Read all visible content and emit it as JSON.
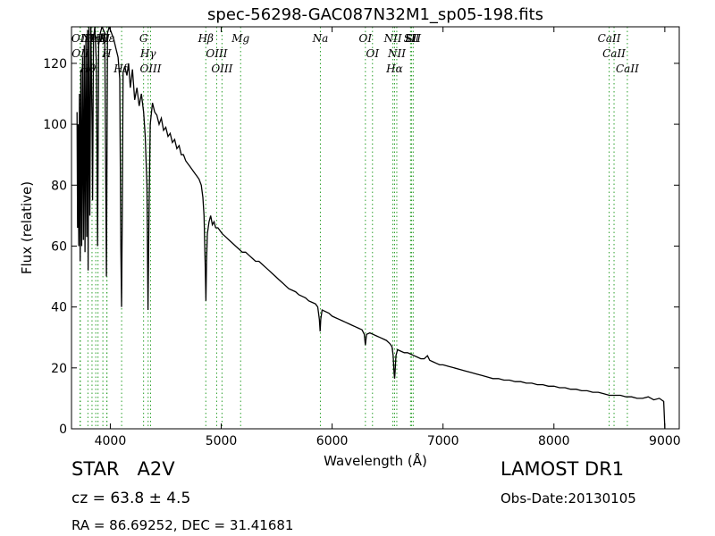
{
  "chart_data": {
    "type": "line",
    "title": "spec-56298-GAC087N32M1_sp05-198.fits",
    "xlabel": "Wavelength (Å)",
    "ylabel": "Flux (relative)",
    "xlim": [
      3650,
      9130
    ],
    "ylim": [
      0,
      132
    ],
    "xticks": [
      4000,
      5000,
      6000,
      7000,
      8000,
      9000
    ],
    "yticks": [
      0,
      20,
      40,
      60,
      80,
      100,
      120
    ],
    "grid": false,
    "series": [
      {
        "color": "#000000",
        "points": [
          [
            3700,
            104
          ],
          [
            3705,
            66
          ],
          [
            3710,
            100
          ],
          [
            3715,
            60
          ],
          [
            3722,
            110
          ],
          [
            3728,
            55
          ],
          [
            3735,
            118
          ],
          [
            3742,
            60
          ],
          [
            3750,
            122
          ],
          [
            3757,
            62
          ],
          [
            3765,
            126
          ],
          [
            3772,
            58
          ],
          [
            3780,
            128
          ],
          [
            3787,
            63
          ],
          [
            3795,
            131
          ],
          [
            3800,
            52
          ],
          [
            3808,
            132
          ],
          [
            3815,
            70
          ],
          [
            3825,
            132
          ],
          [
            3835,
            100
          ],
          [
            3840,
            75
          ],
          [
            3848,
            128
          ],
          [
            3860,
            132
          ],
          [
            3875,
            120
          ],
          [
            3885,
            60
          ],
          [
            3895,
            126
          ],
          [
            3910,
            130
          ],
          [
            3925,
            132
          ],
          [
            3950,
            130
          ],
          [
            3965,
            50
          ],
          [
            3975,
            130
          ],
          [
            3990,
            132
          ],
          [
            4010,
            130
          ],
          [
            4030,
            128
          ],
          [
            4050,
            125
          ],
          [
            4070,
            122
          ],
          [
            4085,
            115
          ],
          [
            4095,
            60
          ],
          [
            4101,
            40
          ],
          [
            4108,
            70
          ],
          [
            4115,
            117
          ],
          [
            4130,
            119
          ],
          [
            4150,
            116
          ],
          [
            4165,
            120
          ],
          [
            4180,
            112
          ],
          [
            4200,
            118
          ],
          [
            4220,
            108
          ],
          [
            4240,
            112
          ],
          [
            4260,
            106
          ],
          [
            4280,
            110
          ],
          [
            4300,
            104
          ],
          [
            4315,
            96
          ],
          [
            4330,
            80
          ],
          [
            4340,
            39
          ],
          [
            4350,
            75
          ],
          [
            4360,
            100
          ],
          [
            4380,
            107
          ],
          [
            4400,
            104
          ],
          [
            4420,
            103
          ],
          [
            4440,
            100
          ],
          [
            4460,
            102
          ],
          [
            4480,
            98
          ],
          [
            4500,
            99
          ],
          [
            4520,
            96
          ],
          [
            4540,
            97
          ],
          [
            4560,
            94
          ],
          [
            4580,
            95
          ],
          [
            4600,
            92
          ],
          [
            4620,
            93
          ],
          [
            4640,
            90
          ],
          [
            4660,
            90
          ],
          [
            4680,
            88
          ],
          [
            4700,
            87
          ],
          [
            4720,
            86
          ],
          [
            4740,
            85
          ],
          [
            4760,
            84
          ],
          [
            4780,
            83
          ],
          [
            4800,
            82
          ],
          [
            4820,
            80
          ],
          [
            4835,
            76
          ],
          [
            4845,
            70
          ],
          [
            4855,
            55
          ],
          [
            4862,
            42
          ],
          [
            4868,
            55
          ],
          [
            4875,
            64
          ],
          [
            4890,
            68
          ],
          [
            4905,
            70
          ],
          [
            4920,
            67
          ],
          [
            4935,
            68
          ],
          [
            4950,
            66
          ],
          [
            4970,
            66
          ],
          [
            4990,
            65
          ],
          [
            5010,
            64
          ],
          [
            5040,
            63
          ],
          [
            5070,
            62
          ],
          [
            5100,
            61
          ],
          [
            5130,
            60
          ],
          [
            5160,
            59
          ],
          [
            5190,
            58
          ],
          [
            5220,
            58
          ],
          [
            5250,
            57
          ],
          [
            5280,
            56
          ],
          [
            5310,
            55
          ],
          [
            5340,
            55
          ],
          [
            5370,
            54
          ],
          [
            5400,
            53
          ],
          [
            5430,
            52
          ],
          [
            5460,
            51
          ],
          [
            5490,
            50
          ],
          [
            5520,
            49
          ],
          [
            5550,
            48
          ],
          [
            5580,
            47
          ],
          [
            5610,
            46
          ],
          [
            5640,
            45.5
          ],
          [
            5670,
            45
          ],
          [
            5700,
            44
          ],
          [
            5730,
            43.5
          ],
          [
            5760,
            43
          ],
          [
            5790,
            42
          ],
          [
            5820,
            41.5
          ],
          [
            5850,
            41
          ],
          [
            5870,
            40
          ],
          [
            5885,
            36
          ],
          [
            5892,
            32
          ],
          [
            5898,
            36
          ],
          [
            5910,
            39
          ],
          [
            5940,
            38.5
          ],
          [
            5970,
            38
          ],
          [
            6000,
            37
          ],
          [
            6030,
            36.5
          ],
          [
            6060,
            36
          ],
          [
            6090,
            35.5
          ],
          [
            6120,
            35
          ],
          [
            6150,
            34.5
          ],
          [
            6180,
            34
          ],
          [
            6210,
            33.5
          ],
          [
            6240,
            33
          ],
          [
            6270,
            32.5
          ],
          [
            6290,
            31
          ],
          [
            6300,
            27.5
          ],
          [
            6310,
            31
          ],
          [
            6340,
            31.5
          ],
          [
            6370,
            31
          ],
          [
            6400,
            30.5
          ],
          [
            6430,
            30
          ],
          [
            6460,
            29.5
          ],
          [
            6490,
            29
          ],
          [
            6520,
            28
          ],
          [
            6540,
            27
          ],
          [
            6550,
            24
          ],
          [
            6558,
            19
          ],
          [
            6563,
            16.5
          ],
          [
            6568,
            19
          ],
          [
            6575,
            24
          ],
          [
            6590,
            26
          ],
          [
            6620,
            25.5
          ],
          [
            6650,
            25
          ],
          [
            6680,
            25
          ],
          [
            6710,
            24.5
          ],
          [
            6740,
            24
          ],
          [
            6770,
            23.5
          ],
          [
            6800,
            23
          ],
          [
            6830,
            23
          ],
          [
            6860,
            24
          ],
          [
            6880,
            22.5
          ],
          [
            6910,
            22
          ],
          [
            6940,
            21.5
          ],
          [
            6970,
            21
          ],
          [
            7000,
            21
          ],
          [
            7050,
            20.5
          ],
          [
            7100,
            20
          ],
          [
            7150,
            19.5
          ],
          [
            7200,
            19
          ],
          [
            7250,
            18.5
          ],
          [
            7300,
            18
          ],
          [
            7350,
            17.5
          ],
          [
            7400,
            17
          ],
          [
            7450,
            16.5
          ],
          [
            7500,
            16.5
          ],
          [
            7550,
            16
          ],
          [
            7600,
            16
          ],
          [
            7650,
            15.5
          ],
          [
            7700,
            15.5
          ],
          [
            7750,
            15
          ],
          [
            7800,
            15
          ],
          [
            7850,
            14.5
          ],
          [
            7900,
            14.5
          ],
          [
            7950,
            14
          ],
          [
            8000,
            14
          ],
          [
            8050,
            13.5
          ],
          [
            8100,
            13.5
          ],
          [
            8150,
            13
          ],
          [
            8200,
            13
          ],
          [
            8250,
            12.5
          ],
          [
            8300,
            12.5
          ],
          [
            8350,
            12
          ],
          [
            8400,
            12
          ],
          [
            8450,
            11.5
          ],
          [
            8500,
            11
          ],
          [
            8550,
            11
          ],
          [
            8600,
            11
          ],
          [
            8650,
            10.5
          ],
          [
            8700,
            10.5
          ],
          [
            8750,
            10
          ],
          [
            8800,
            10
          ],
          [
            8850,
            10.5
          ],
          [
            8900,
            9.5
          ],
          [
            8950,
            10
          ],
          [
            8990,
            9
          ],
          [
            9000,
            0
          ]
        ]
      }
    ],
    "line_markers": [
      {
        "wavelength": 3727,
        "label": "OII"
      },
      {
        "wavelength": 3730,
        "label": "OII"
      },
      {
        "wavelength": 3798,
        "label": "Hθ"
      },
      {
        "wavelength": 3835,
        "label": "Hη"
      },
      {
        "wavelength": 3869,
        "label": "NeIII"
      },
      {
        "wavelength": 3889,
        "label": "Hζ"
      },
      {
        "wavelength": 3933,
        "label": "K"
      },
      {
        "wavelength": 3968,
        "label": "H"
      },
      {
        "wavelength": 3970,
        "label": "Hε"
      },
      {
        "wavelength": 4102,
        "label": "Hδ"
      },
      {
        "wavelength": 4300,
        "label": "G"
      },
      {
        "wavelength": 4341,
        "label": "Hγ"
      },
      {
        "wavelength": 4363,
        "label": "OIII"
      },
      {
        "wavelength": 4861,
        "label": "Hβ"
      },
      {
        "wavelength": 4959,
        "label": "OIII"
      },
      {
        "wavelength": 5007,
        "label": "OIII"
      },
      {
        "wavelength": 5175,
        "label": "Mg"
      },
      {
        "wavelength": 5894,
        "label": "Na"
      },
      {
        "wavelength": 6300,
        "label": "OI"
      },
      {
        "wavelength": 6364,
        "label": "OI"
      },
      {
        "wavelength": 6548,
        "label": "NII"
      },
      {
        "wavelength": 6563,
        "label": "Hα"
      },
      {
        "wavelength": 6583,
        "label": "NII"
      },
      {
        "wavelength": 6707,
        "label": "Li"
      },
      {
        "wavelength": 6716,
        "label": "SII"
      },
      {
        "wavelength": 6731,
        "label": "SII"
      },
      {
        "wavelength": 8498,
        "label": "CaII"
      },
      {
        "wavelength": 8542,
        "label": "CaII"
      },
      {
        "wavelength": 8662,
        "label": "CaII"
      }
    ],
    "line_color": "#2ca02c"
  },
  "footer": {
    "object_class": "STAR   A2V",
    "redshift": "cz = 63.8 ± 4.5",
    "coordinates": "RA = 86.69252, DEC = 31.41681",
    "survey": "LAMOST DR1",
    "obs_date": "Obs-Date:20130105"
  }
}
